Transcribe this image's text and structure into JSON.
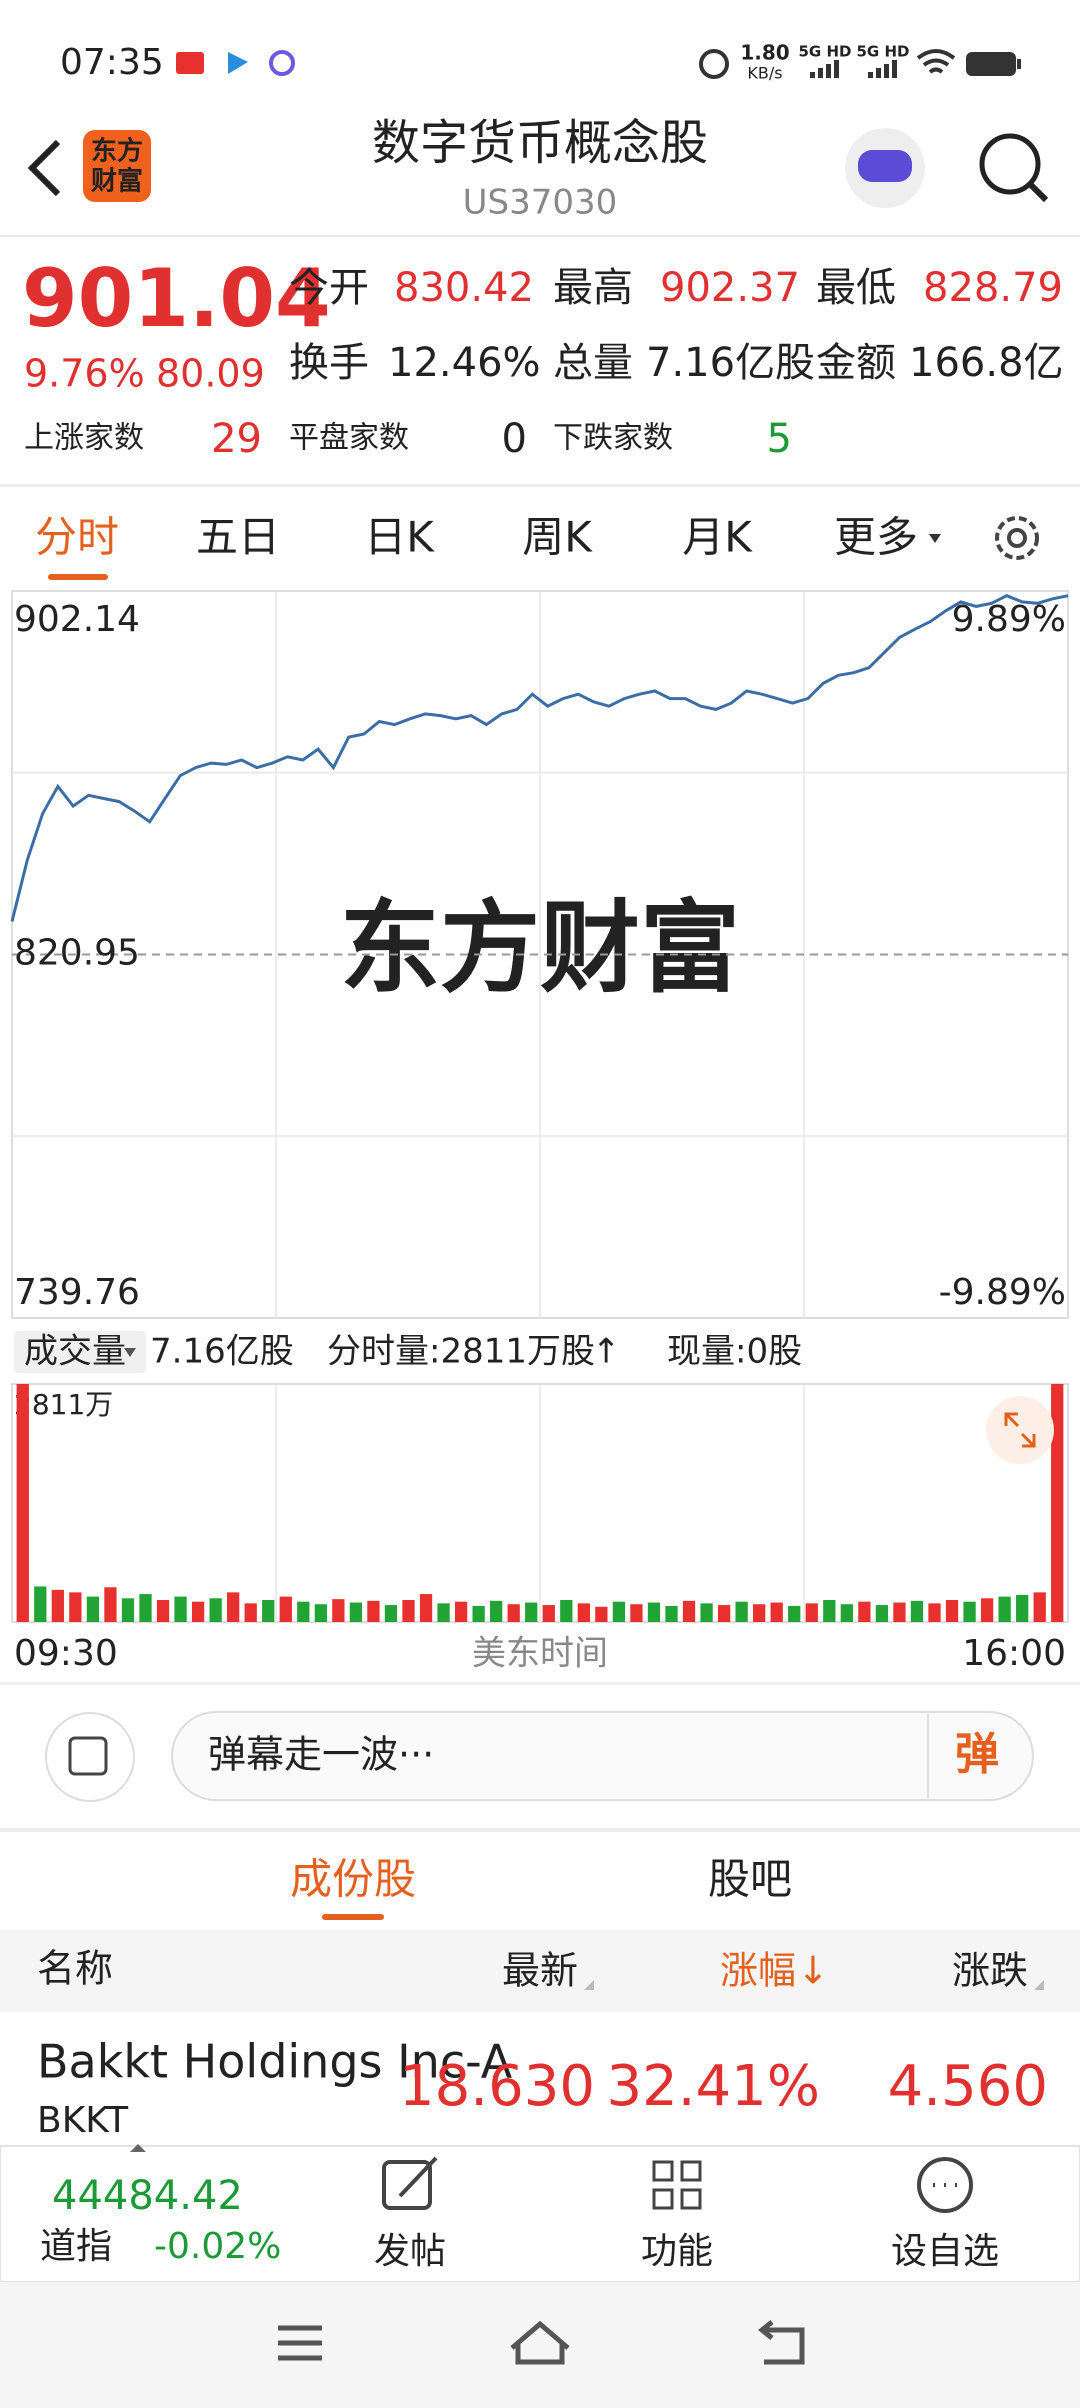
{
  "status_bar": {
    "time": "07:35",
    "speed": "1.80",
    "speed_unit": "KB/s",
    "signal_1": "5G HD",
    "signal_2": "5G HD"
  },
  "header": {
    "logo": [
      "东方",
      "财富"
    ],
    "title": "数字货币概念股",
    "code": "US37030"
  },
  "quote": {
    "price": "901.04",
    "change_pct": "9.76%",
    "change": "80.09",
    "stats": [
      {
        "label": "今开",
        "value": "830.42"
      },
      {
        "label": "最高",
        "value": "902.37"
      },
      {
        "label": "最低",
        "value": "828.79"
      },
      {
        "label": "换手",
        "value": "12.46%"
      },
      {
        "label": "总量",
        "value": "7.16亿股"
      },
      {
        "label": "金额",
        "value": "166.8亿"
      }
    ],
    "breadth": [
      {
        "label": "上涨家数",
        "value": "29"
      },
      {
        "label": "平盘家数",
        "value": "0"
      },
      {
        "label": "下跌家数",
        "value": "5"
      }
    ]
  },
  "period_tabs": [
    "分时",
    "五日",
    "日K",
    "周K",
    "月K",
    "更多"
  ],
  "price_chart": {
    "type": "line",
    "color": "#3a6ea5",
    "watermark": "东方财富",
    "ylim": [
      739.76,
      902.14
    ],
    "yticks": [
      739.76,
      820.95,
      902.14
    ],
    "y2lim": [
      -9.89,
      9.89
    ],
    "y2ticks": [
      {
        "value": -9.89,
        "label": "-9.89%"
      },
      {
        "value": 9.89,
        "label": "9.89%"
      }
    ],
    "values": [
      828.33,
      842.06,
      852.4,
      858.5,
      854.1,
      856.5,
      855.8,
      855.1,
      853.0,
      850.6,
      855.8,
      860.9,
      862.7,
      863.7,
      863.4,
      864.4,
      862.7,
      863.7,
      865.1,
      864.4,
      866.8,
      862.7,
      869.5,
      870.2,
      873.0,
      872.3,
      873.6,
      874.7,
      874.3,
      873.6,
      874.3,
      872.3,
      874.7,
      875.7,
      879.1,
      876.4,
      878.1,
      879.1,
      877.4,
      876.4,
      878.1,
      879.1,
      879.8,
      878.1,
      878.1,
      876.4,
      875.7,
      877.1,
      879.8,
      879.1,
      878.1,
      877.1,
      878.1,
      881.5,
      883.3,
      883.9,
      885.0,
      888.4,
      891.8,
      893.6,
      895.3,
      897.7,
      899.7,
      898.7,
      899.4,
      901.1,
      899.7,
      899.4,
      900.4,
      901.1
    ]
  },
  "volume_bar": {
    "selector": "成交量",
    "total": "7.16亿股",
    "minute_volume": "分时量:2811万股",
    "arrow": "↑",
    "current": "现量:0股"
  },
  "volume_chart": {
    "type": "bar",
    "ylim": [
      0,
      2811
    ],
    "yticks": [
      {
        "value": 2811,
        "label": "2811万"
      }
    ],
    "values": [
      2811,
      420,
      380,
      350,
      300,
      410,
      280,
      330,
      260,
      300,
      240,
      280,
      350,
      220,
      260,
      300,
      240,
      210,
      270,
      230,
      250,
      200,
      260,
      330,
      220,
      240,
      190,
      250,
      210,
      230,
      200,
      260,
      220,
      180,
      240,
      210,
      230,
      190,
      250,
      220,
      200,
      240,
      210,
      230,
      190,
      220,
      260,
      210,
      240,
      200,
      230,
      250,
      220,
      260,
      240,
      280,
      300,
      320,
      350,
      2811
    ],
    "colors": [
      "#e8312f",
      "#21a336",
      "#e8312f",
      "#e8312f",
      "#21a336",
      "#e8312f",
      "#21a336",
      "#21a336",
      "#e8312f",
      "#21a336",
      "#e8312f",
      "#21a336",
      "#e8312f",
      "#e8312f",
      "#21a336",
      "#e8312f",
      "#21a336",
      "#21a336",
      "#e8312f",
      "#21a336",
      "#e8312f",
      "#21a336",
      "#e8312f",
      "#e8312f",
      "#21a336",
      "#e8312f",
      "#21a336",
      "#21a336",
      "#e8312f",
      "#21a336",
      "#e8312f",
      "#21a336",
      "#e8312f",
      "#e8312f",
      "#21a336",
      "#e8312f",
      "#21a336",
      "#21a336",
      "#e8312f",
      "#21a336",
      "#e8312f",
      "#21a336",
      "#e8312f",
      "#e8312f",
      "#21a336",
      "#e8312f",
      "#21a336",
      "#21a336",
      "#e8312f",
      "#21a336",
      "#e8312f",
      "#21a336",
      "#e8312f",
      "#e8312f",
      "#21a336",
      "#e8312f",
      "#21a336",
      "#21a336",
      "#e8312f",
      "#e8312f"
    ]
  },
  "time_axis": {
    "start": "09:30",
    "label": "美东时间",
    "end": "16:00"
  },
  "comment": {
    "placeholder": "弹幕走一波···",
    "button": "弹"
  },
  "section_tabs": [
    "成份股",
    "股吧"
  ],
  "table": {
    "headers": [
      "名称",
      "最新",
      "涨幅",
      "涨跌"
    ],
    "sort_arrow": "↓",
    "rows": [
      {
        "name": "Bakkt Holdings Inc-A",
        "code": "BKKT",
        "cells": [
          "18.630",
          "32.41%",
          "4.560"
        ]
      }
    ]
  },
  "bottom_bar": {
    "index_value": "44484.42",
    "index_name": "道指",
    "index_change": "-0.02%",
    "actions": [
      "发帖",
      "功能",
      "设自选"
    ]
  }
}
